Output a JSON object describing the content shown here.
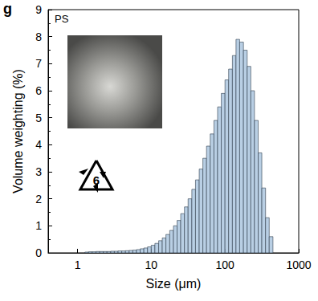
{
  "chart_data": {
    "type": "histogram",
    "panel_label": "g",
    "annotations": [
      "PS",
      "6"
    ],
    "x_label": "Size (μm)",
    "y_label": "Volume weighting (%)",
    "log": "x",
    "grid": false,
    "color": "#b9cfe4",
    "bins": [
      1.26,
      1.41,
      1.58,
      1.78,
      2.0,
      2.24,
      2.51,
      2.82,
      3.16,
      3.55,
      3.98,
      4.47,
      5.01,
      5.62,
      6.31,
      7.08,
      7.94,
      8.91,
      10,
      11.2,
      12.6,
      14.1,
      15.8,
      17.8,
      20.0,
      22.4,
      25.1,
      28.2,
      31.6,
      35.5,
      39.8,
      44.7,
      50.1,
      56.2,
      63.1,
      70.8,
      79.4,
      89.1,
      100,
      112,
      126,
      141,
      158,
      178,
      200,
      224,
      251,
      282,
      316,
      355,
      398,
      447
    ],
    "values": [
      0.03,
      0.04,
      0.04,
      0.05,
      0.05,
      0.05,
      0.05,
      0.06,
      0.06,
      0.07,
      0.07,
      0.08,
      0.09,
      0.1,
      0.12,
      0.15,
      0.18,
      0.22,
      0.28,
      0.35,
      0.45,
      0.55,
      0.68,
      0.83,
      1.0,
      1.2,
      1.45,
      1.7,
      2.0,
      2.35,
      2.7,
      3.1,
      3.5,
      3.95,
      4.4,
      4.9,
      5.4,
      5.9,
      6.4,
      6.8,
      7.3,
      7.9,
      7.8,
      7.5,
      6.9,
      6.0,
      4.9,
      3.7,
      2.4,
      1.3,
      0.6
    ],
    "xlim": [
      0.4,
      1000
    ],
    "xticks": [
      1,
      10,
      100,
      1000
    ],
    "ylim": [
      0,
      9
    ],
    "yticks": [
      0,
      1,
      2,
      3,
      4,
      5,
      6,
      7,
      8,
      9
    ]
  }
}
